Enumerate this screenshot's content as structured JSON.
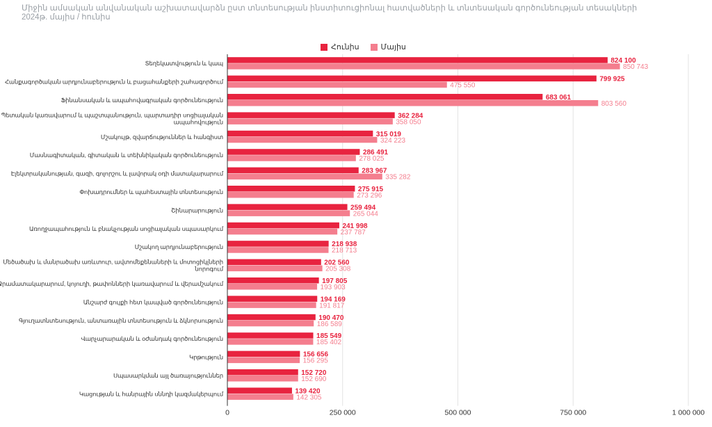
{
  "chart_data": {
    "type": "bar",
    "orientation": "horizontal",
    "title": "Միջին ամսական անվանական աշխատավարձն ըստ տնտեսության ինստիտուցիոնալ հատվածների և տնտեսական գործունեության տեսակների",
    "subtitle": "2024թ. մայիս / հունիս",
    "xlim": [
      0,
      1000000
    ],
    "xticks": [
      "0",
      "250 000",
      "500 000",
      "750 000",
      "1 000 000"
    ],
    "xtick_values": [
      0,
      250000,
      500000,
      750000,
      1000000
    ],
    "grid": "vertical",
    "legend_position": "top",
    "categories": [
      "Տեղեկատվություն և կապ",
      "Հանքագործական արդյունաբերություն և բացահանքերի շահագործում",
      "Ֆինանսական և ապահովագրական գործունեություն",
      "Պետական կառավարում և պաշտպանություն, պարտադիր սոցիալական ապահովություն",
      "Մշակույթ, զվարճություններ և հանգիստ",
      "Մասնագիտական, գիտական և տեխնիկական գործունեություն",
      "Էլեկտրականության, գազի, գոլորշու և լավորակ օդի մատակարարում",
      "Փոխադրումներ և պահեստային տնտեսություն",
      "Շինարարություն",
      "Առողջապահություն և բնակչության սոցիալական սպասարկում",
      "Մշակող արդյունաբերություն",
      "Մեծածախ և մանրածախ առևտուր, ավտոմեքենաների և մոտոցիկլների նորոգում",
      "Ջրամատակարարում, կոյուղի, թափոնների կառավարում և վերամշակում",
      "Անշարժ գույքի հետ կապված գործունեություն",
      "Գյուղատնտեսություն, անտառային տնտեսություն և ձկնորսություն",
      "Վարչարարական և օժանդակ գործունեություն",
      "Կրթություն",
      "Սպասարկման այլ ծառայություններ",
      "Կացության և հանրային սննդի կազմակերպում"
    ],
    "series": [
      {
        "name": "Հունիս",
        "color": "#e8233f",
        "values": [
          824100,
          799925,
          683061,
          362284,
          315019,
          286491,
          283967,
          275915,
          259494,
          241998,
          218938,
          202560,
          197805,
          194169,
          190470,
          185549,
          156656,
          152720,
          139420
        ],
        "labels": [
          "824 100",
          "799 925",
          "683 061",
          "362 284",
          "315 019",
          "286 491",
          "283 967",
          "275 915",
          "259 494",
          "241 998",
          "218 938",
          "202 560",
          "197 805",
          "194 169",
          "190 470",
          "185 549",
          "156 656",
          "152 720",
          "139 420"
        ]
      },
      {
        "name": "Մայիս",
        "color": "#f47e8e",
        "values": [
          850743,
          475550,
          803560,
          358050,
          324223,
          278025,
          335282,
          273296,
          265044,
          237787,
          218713,
          205308,
          193903,
          191817,
          186589,
          185402,
          156295,
          152690,
          142305
        ],
        "labels": [
          "850 743",
          "475 550",
          "803 560",
          "358 050",
          "324 223",
          "278 025",
          "335 282",
          "273 296",
          "265 044",
          "237 787",
          "218 713",
          "205 308",
          "193 903",
          "191 817",
          "186 589",
          "185 402",
          "156 295",
          "152 690",
          "142 305"
        ]
      }
    ]
  }
}
